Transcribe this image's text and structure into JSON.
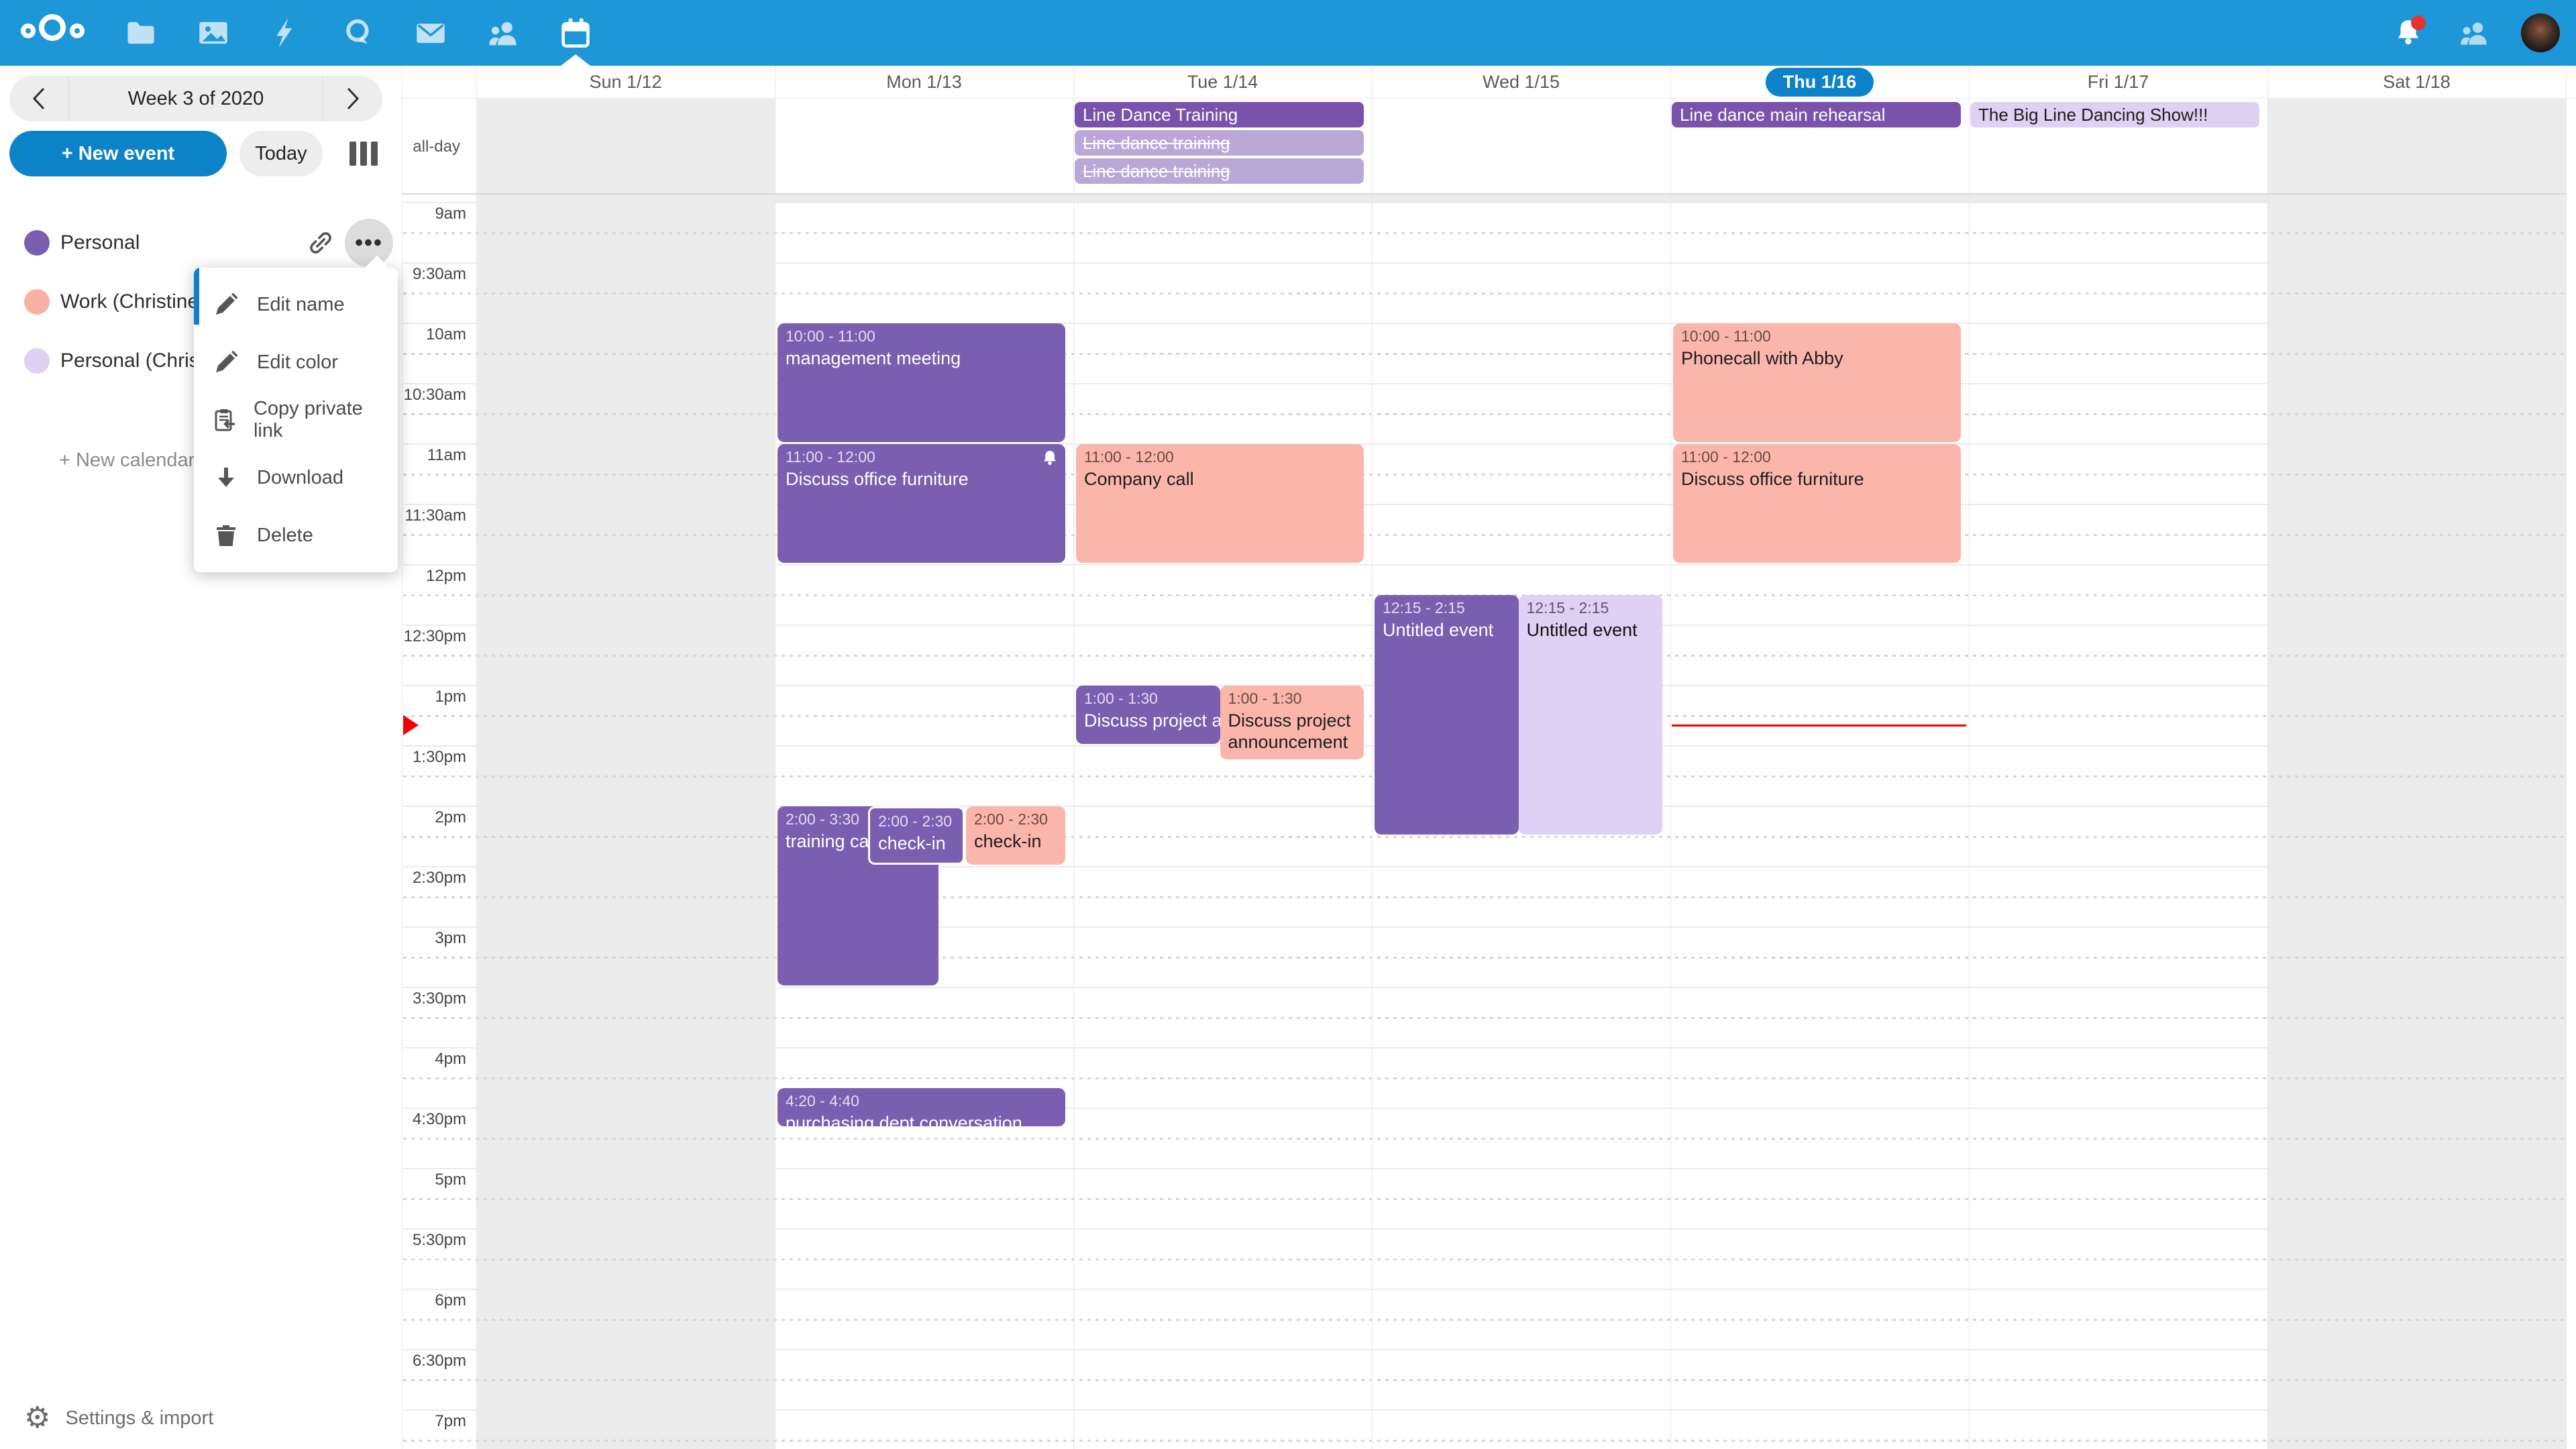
{
  "app": {
    "title": "Nextcloud Calendar"
  },
  "palette": {
    "topbar": "#1d97d8",
    "primary": "#0c82c9",
    "purple": "#7a5fb0",
    "purple_dark": "#7b52ab",
    "purple_light": "#b9a7d8",
    "salmon": "#fbb6ac",
    "lavender": "#ded1f4",
    "weekend": "#ececec",
    "now_red": "#f40000",
    "notification_badge": "#e9322d"
  },
  "topbar": {
    "apps": [
      {
        "name": "nextcloud-logo",
        "icon": "logo"
      },
      {
        "name": "files",
        "icon": "folder"
      },
      {
        "name": "photos",
        "icon": "photos"
      },
      {
        "name": "activity",
        "icon": "bolt"
      },
      {
        "name": "talk",
        "icon": "talk"
      },
      {
        "name": "mail",
        "icon": "mail"
      },
      {
        "name": "contacts",
        "icon": "people"
      },
      {
        "name": "calendar",
        "icon": "calendar",
        "active": true
      }
    ]
  },
  "sidebar": {
    "week_label": "Week 3 of 2020",
    "new_event_label": "+ New event",
    "today_label": "Today",
    "calendars": [
      {
        "name": "Personal",
        "color": "#7a5fb0",
        "actions": true
      },
      {
        "name": "Work (Christine S",
        "color": "#f9b1a4"
      },
      {
        "name": "Personal (Christi",
        "color": "#ded1f4"
      }
    ],
    "new_calendar_label": "+ New calendar",
    "settings_label": "Settings & import"
  },
  "menu": {
    "items": [
      {
        "label": "Edit name",
        "icon": "pencil"
      },
      {
        "label": "Edit color",
        "icon": "pencil"
      },
      {
        "label": "Copy private link",
        "icon": "clipboard"
      },
      {
        "label": "Download",
        "icon": "download"
      },
      {
        "label": "Delete",
        "icon": "trash"
      }
    ]
  },
  "calendar": {
    "allday_label": "all-day",
    "days": [
      {
        "label": "Sun 1/12",
        "weekend": true
      },
      {
        "label": "Mon 1/13"
      },
      {
        "label": "Tue 1/14"
      },
      {
        "label": "Wed 1/15"
      },
      {
        "label": "Thu 1/16",
        "today": true
      },
      {
        "label": "Fri 1/17"
      },
      {
        "label": "Sat 1/18",
        "weekend": true
      }
    ],
    "time_labels": [
      "9am",
      "9:30am",
      "10am",
      "10:30am",
      "11am",
      "11:30am",
      "12pm",
      "12:30pm",
      "1pm",
      "1:30pm",
      "2pm",
      "2:30pm",
      "3pm",
      "3:30pm",
      "4pm",
      "4:30pm",
      "5pm",
      "5:30pm",
      "6pm",
      "6:30pm",
      "7pm"
    ],
    "allday_events": [
      {
        "day": 2,
        "row": 0,
        "title": "Line Dance Training",
        "color": "purple_dark"
      },
      {
        "day": 2,
        "row": 1,
        "title": "Line dance training",
        "color": "purple_light",
        "declined": true
      },
      {
        "day": 2,
        "row": 2,
        "title": "Line dance training",
        "color": "purple_light",
        "declined": true
      },
      {
        "day": 4,
        "row": 0,
        "title": "Line dance main rehearsal",
        "color": "purple_dark"
      },
      {
        "day": 5,
        "row": 0,
        "title": "The Big Line Dancing Show!!!",
        "color": "lavender"
      }
    ],
    "events": [
      {
        "day": 1,
        "start": 600,
        "end": 660,
        "time": "10:00 - 11:00",
        "title": "management meeting",
        "color": "purple"
      },
      {
        "day": 1,
        "start": 660,
        "end": 720,
        "time": "11:00 - 12:00",
        "title": "Discuss office furniture",
        "color": "purple",
        "alarm": true
      },
      {
        "day": 1,
        "start": 840,
        "end": 930,
        "time": "2:00 - 3:30",
        "title": "training call",
        "color": "purple",
        "lf": 0,
        "wf": 0.56,
        "nowrap": true
      },
      {
        "day": 1,
        "start": 840,
        "end": 870,
        "time": "2:00 - 2:30",
        "title": "check-in",
        "color": "purple",
        "lf": 0.315,
        "wf": 0.335,
        "outlined": true
      },
      {
        "day": 1,
        "start": 840,
        "end": 870,
        "time": "2:00 - 2:30",
        "title": "check-in",
        "color": "salmon",
        "lf": 0.655,
        "wf": 0.345
      },
      {
        "day": 1,
        "start": 980,
        "end": 1000,
        "time": "4:20 - 4:40",
        "title": "purchasing dept conversation",
        "color": "purple",
        "nowrap": true
      },
      {
        "day": 2,
        "start": 660,
        "end": 720,
        "time": "11:00 - 12:00",
        "title": "Company call",
        "color": "salmon"
      },
      {
        "day": 2,
        "start": 780,
        "end": 810,
        "time": "1:00 - 1:30",
        "title": "Discuss project announcement",
        "color": "purple",
        "lf": 0,
        "wf": 0.5,
        "nowrap": true
      },
      {
        "day": 2,
        "start": 780,
        "end": 810,
        "time": "1:00 - 1:30",
        "title": "Discuss project announcement",
        "color": "salmon",
        "lf": 0.5,
        "wf": 0.5,
        "minh": 110
      },
      {
        "day": 3,
        "start": 735,
        "end": 855,
        "time": "12:15 - 2:15",
        "title": "Untitled event",
        "color": "purple",
        "lf": 0,
        "wf": 0.5,
        "nowrap": true
      },
      {
        "day": 3,
        "start": 735,
        "end": 855,
        "time": "12:15 - 2:15",
        "title": "Untitled event",
        "color": "lavender",
        "lf": 0.5,
        "wf": 0.5,
        "nowrap": true
      },
      {
        "day": 4,
        "start": 600,
        "end": 660,
        "time": "10:00 - 11:00",
        "title": "Phonecall with Abby",
        "color": "salmon"
      },
      {
        "day": 4,
        "start": 660,
        "end": 720,
        "time": "11:00 - 12:00",
        "title": "Discuss office furniture",
        "color": "salmon"
      }
    ],
    "now": {
      "day": 4,
      "minute": 800
    }
  }
}
